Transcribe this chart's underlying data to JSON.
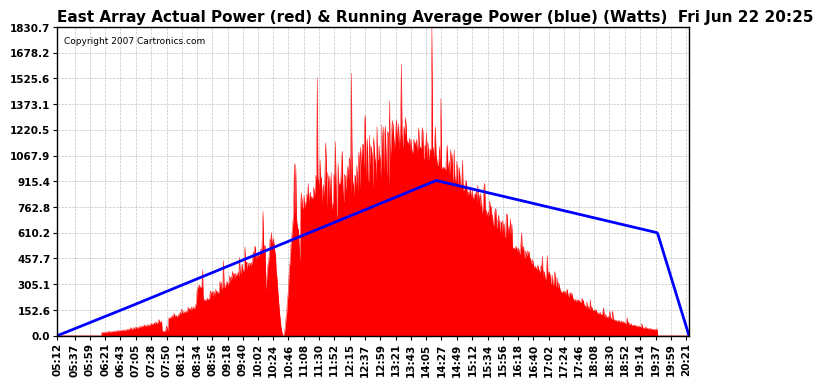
{
  "title": "East Array Actual Power (red) & Running Average Power (blue) (Watts)  Fri Jun 22 20:25",
  "copyright_text": "Copyright 2007 Cartronics.com",
  "yticks": [
    0.0,
    152.6,
    305.1,
    457.7,
    610.2,
    762.8,
    915.4,
    1067.9,
    1220.5,
    1373.1,
    1525.6,
    1678.2,
    1830.7
  ],
  "ymax": 1830.7,
  "ymin": 0.0,
  "background_color": "#ffffff",
  "plot_bg_color": "#ffffff",
  "grid_color": "#aaaaaa",
  "fill_color": "#ff0000",
  "avg_line_color": "#0000ff",
  "title_fontsize": 11,
  "tick_fontsize": 7.5,
  "xtick_labels": [
    "05:12",
    "05:37",
    "05:59",
    "06:21",
    "06:43",
    "07:05",
    "07:28",
    "07:50",
    "08:12",
    "08:34",
    "08:56",
    "09:18",
    "09:40",
    "10:02",
    "10:24",
    "10:46",
    "11:08",
    "11:30",
    "11:52",
    "12:15",
    "12:37",
    "12:59",
    "13:21",
    "13:43",
    "14:05",
    "14:27",
    "14:49",
    "15:12",
    "15:34",
    "15:56",
    "16:18",
    "16:40",
    "17:02",
    "17:24",
    "17:46",
    "18:08",
    "18:30",
    "18:52",
    "19:14",
    "19:37",
    "19:59",
    "20:21"
  ]
}
